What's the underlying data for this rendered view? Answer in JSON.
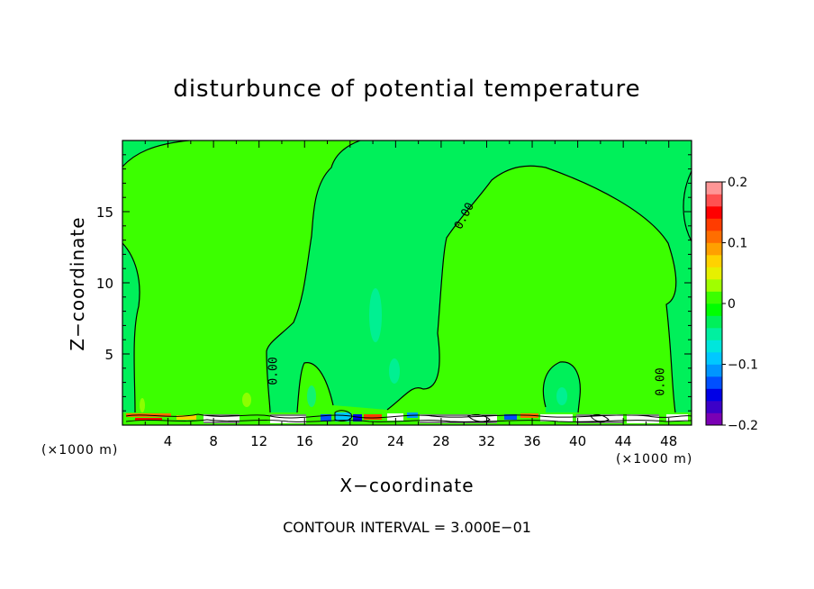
{
  "chart_data": {
    "type": "heatmap",
    "title": "disturbunce of potential temperature",
    "xlabel": "X−coordinate",
    "ylabel": "Z−coordinate",
    "x_unit": "(×1000 m)",
    "z_unit": "(×1000 m)",
    "xlim": [
      0,
      50
    ],
    "zlim": [
      0,
      20
    ],
    "x_ticks": [
      4,
      8,
      12,
      16,
      20,
      24,
      28,
      32,
      36,
      40,
      44,
      48
    ],
    "z_ticks": [
      5,
      10,
      15
    ],
    "colorbar": {
      "range": [
        -0.2,
        0.2
      ],
      "tick_labels": [
        "0.2",
        "0.1",
        "0",
        "−0.1",
        "−0.2"
      ],
      "tick_values": [
        0.2,
        0.1,
        0,
        -0.1,
        -0.2
      ],
      "colors": [
        "#7a00b4",
        "#3c00c8",
        "#0000e6",
        "#0050ff",
        "#0096ff",
        "#00c8ff",
        "#00e6dc",
        "#00f0a0",
        "#00f05a",
        "#00ff00",
        "#3cff00",
        "#a0ff00",
        "#e6f000",
        "#ffd200",
        "#ffa000",
        "#ff6e00",
        "#ff3c00",
        "#ff0000",
        "#ff5050",
        "#ff9696"
      ]
    },
    "contour_labels": [
      "0.00",
      "0.00",
      "0.00"
    ],
    "contour_interval_text": "CONTOUR INTERVAL = 3.000E−01"
  }
}
